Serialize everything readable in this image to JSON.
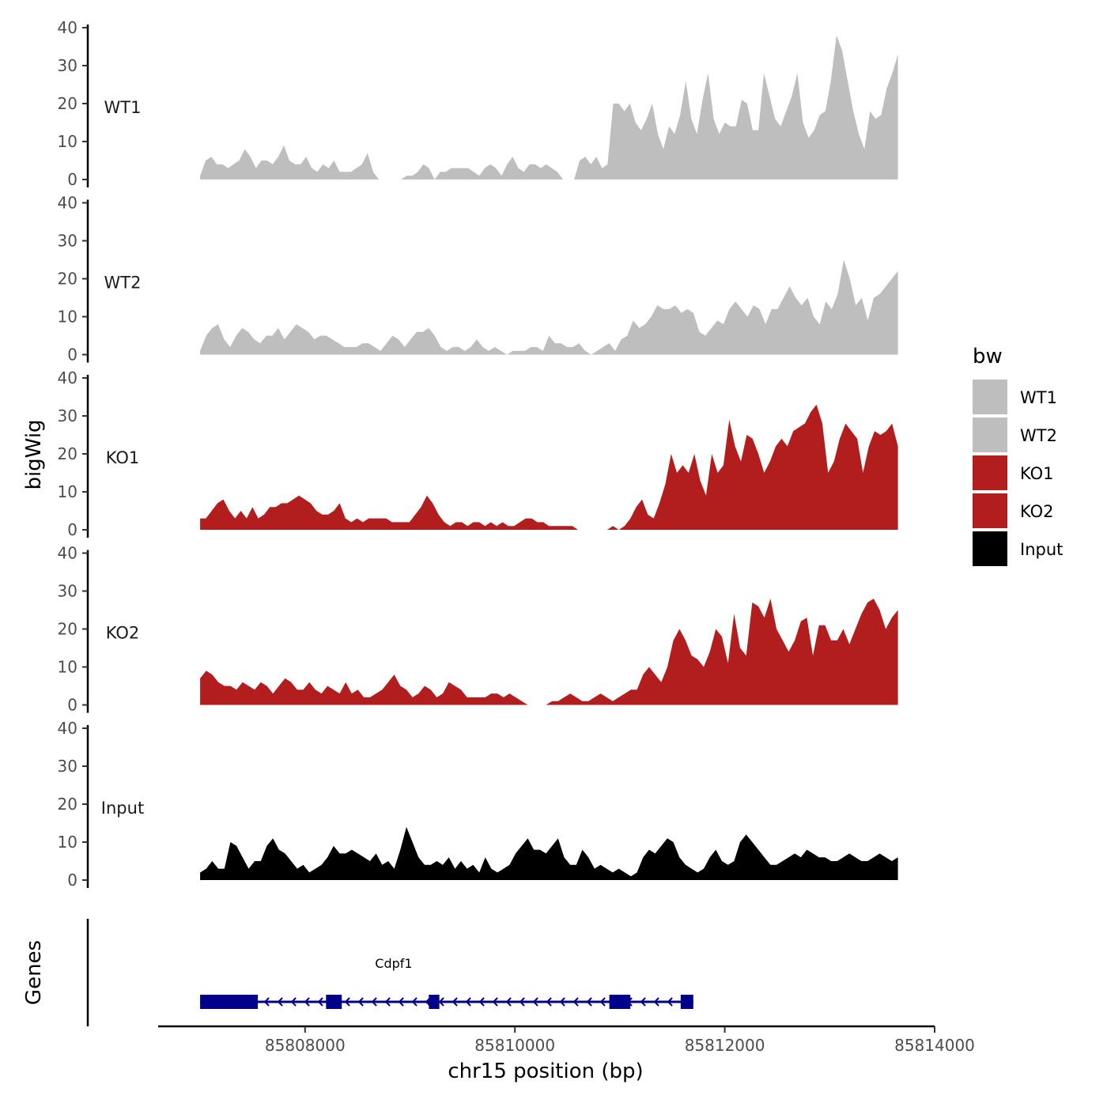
{
  "chart_data": {
    "type": "area",
    "ylabel": "bigWig",
    "xlabel": "chr15 position (bp)",
    "genes_label": "Genes",
    "ylim": [
      0,
      40
    ],
    "yticks": [
      0,
      10,
      20,
      30,
      40
    ],
    "xlim": [
      85806600,
      85814000
    ],
    "xticks": [
      85808000,
      85810000,
      85812000,
      85814000
    ],
    "x_start": 85807000,
    "x_end": 85813650,
    "legend": {
      "title": "bw",
      "position": "right",
      "entries": [
        {
          "label": "WT1",
          "color": "#bebebe"
        },
        {
          "label": "WT2",
          "color": "#bebebe"
        },
        {
          "label": "KO1",
          "color": "#b21e1e"
        },
        {
          "label": "KO2",
          "color": "#b21e1e"
        },
        {
          "label": "Input",
          "color": "#000000"
        }
      ]
    },
    "series": [
      {
        "name": "WT1",
        "color": "#bebebe",
        "values": [
          1,
          5,
          6,
          4,
          4,
          3,
          4,
          5,
          8,
          6,
          3,
          5,
          5,
          4,
          6,
          9,
          5,
          4,
          4,
          6,
          3,
          2,
          4,
          3,
          5,
          2,
          2,
          2,
          3,
          4,
          7,
          2,
          0,
          0,
          0,
          0,
          0,
          1,
          1,
          2,
          4,
          3,
          0,
          2,
          2,
          3,
          3,
          3,
          3,
          2,
          1,
          3,
          4,
          3,
          1,
          4,
          6,
          3,
          2,
          4,
          4,
          3,
          4,
          3,
          2,
          0,
          0,
          0,
          5,
          6,
          4,
          6,
          3,
          4,
          20,
          20,
          18,
          20,
          15,
          13,
          16,
          20,
          12,
          8,
          14,
          12,
          17,
          26,
          16,
          12,
          21,
          28,
          16,
          12,
          15,
          14,
          14,
          21,
          20,
          13,
          13,
          28,
          22,
          16,
          14,
          18,
          22,
          28,
          15,
          11,
          13,
          17,
          18,
          26,
          38,
          34,
          26,
          18,
          12,
          8,
          18,
          16,
          17,
          24,
          28,
          33
        ]
      },
      {
        "name": "WT2",
        "color": "#bebebe",
        "values": [
          1,
          5,
          7,
          8,
          4,
          2,
          5,
          7,
          6,
          4,
          3,
          5,
          5,
          7,
          4,
          6,
          8,
          7,
          6,
          4,
          5,
          5,
          4,
          3,
          2,
          2,
          2,
          3,
          3,
          2,
          1,
          3,
          5,
          4,
          2,
          4,
          6,
          6,
          7,
          5,
          2,
          1,
          2,
          2,
          1,
          2,
          4,
          2,
          1,
          2,
          1,
          0,
          1,
          1,
          1,
          2,
          2,
          1,
          5,
          3,
          3,
          2,
          2,
          3,
          1,
          0,
          1,
          2,
          3,
          1,
          4,
          5,
          9,
          7,
          8,
          10,
          13,
          12,
          12,
          13,
          11,
          12,
          11,
          6,
          5,
          7,
          9,
          8,
          12,
          14,
          12,
          10,
          13,
          12,
          8,
          12,
          12,
          15,
          18,
          15,
          13,
          15,
          10,
          8,
          14,
          12,
          16,
          25,
          20,
          13,
          15,
          9,
          15,
          16,
          18,
          20,
          22
        ]
      },
      {
        "name": "KO1",
        "color": "#b21e1e",
        "values": [
          3,
          3,
          5,
          7,
          8,
          5,
          3,
          5,
          3,
          6,
          3,
          4,
          6,
          6,
          7,
          7,
          8,
          9,
          8,
          7,
          5,
          4,
          4,
          5,
          7,
          3,
          2,
          3,
          2,
          3,
          3,
          3,
          3,
          2,
          2,
          2,
          2,
          4,
          6,
          9,
          7,
          4,
          2,
          1,
          2,
          2,
          1,
          2,
          2,
          1,
          2,
          1,
          2,
          1,
          1,
          2,
          3,
          3,
          2,
          2,
          1,
          1,
          1,
          1,
          1,
          0,
          0,
          0,
          0,
          0,
          0,
          1,
          0,
          1,
          3,
          6,
          8,
          4,
          3,
          7,
          12,
          20,
          15,
          17,
          15,
          20,
          13,
          9,
          20,
          15,
          17,
          29,
          22,
          18,
          25,
          24,
          20,
          15,
          18,
          22,
          24,
          22,
          26,
          27,
          28,
          31,
          33,
          28,
          15,
          18,
          24,
          28,
          26,
          24,
          15,
          22,
          26,
          25,
          26,
          28,
          22
        ]
      },
      {
        "name": "KO2",
        "color": "#b21e1e",
        "values": [
          7,
          9,
          8,
          6,
          5,
          5,
          4,
          6,
          5,
          4,
          6,
          5,
          3,
          5,
          7,
          6,
          4,
          4,
          6,
          4,
          3,
          5,
          4,
          3,
          6,
          3,
          4,
          2,
          2,
          3,
          4,
          6,
          8,
          5,
          4,
          2,
          3,
          5,
          4,
          2,
          3,
          6,
          5,
          4,
          2,
          2,
          2,
          2,
          3,
          3,
          2,
          3,
          2,
          1,
          0,
          0,
          0,
          0,
          1,
          1,
          2,
          3,
          2,
          1,
          1,
          2,
          3,
          2,
          1,
          2,
          3,
          4,
          4,
          8,
          10,
          8,
          6,
          10,
          17,
          20,
          17,
          13,
          12,
          10,
          14,
          20,
          18,
          11,
          24,
          15,
          13,
          27,
          26,
          23,
          28,
          20,
          17,
          14,
          17,
          22,
          23,
          13,
          21,
          21,
          17,
          17,
          20,
          16,
          20,
          24,
          27,
          28,
          25,
          20,
          23,
          25
        ]
      },
      {
        "name": "Input",
        "color": "#000000",
        "values": [
          2,
          3,
          5,
          3,
          3,
          10,
          9,
          6,
          3,
          5,
          5,
          9,
          11,
          8,
          7,
          5,
          3,
          4,
          2,
          3,
          4,
          6,
          9,
          7,
          7,
          8,
          7,
          6,
          5,
          7,
          4,
          5,
          3,
          8,
          14,
          10,
          6,
          4,
          4,
          5,
          4,
          6,
          3,
          5,
          3,
          4,
          2,
          6,
          3,
          2,
          3,
          4,
          7,
          9,
          11,
          8,
          8,
          7,
          9,
          11,
          6,
          4,
          4,
          8,
          6,
          3,
          4,
          3,
          2,
          3,
          2,
          1,
          2,
          6,
          8,
          7,
          9,
          11,
          10,
          6,
          4,
          3,
          2,
          3,
          6,
          8,
          5,
          4,
          5,
          10,
          12,
          10,
          8,
          6,
          4,
          4,
          5,
          6,
          7,
          6,
          8,
          7,
          6,
          6,
          5,
          5,
          6,
          7,
          6,
          5,
          5,
          6,
          7,
          6,
          5,
          6
        ]
      }
    ],
    "genes": [
      {
        "name": "Cdpf1",
        "strand": "-",
        "start": 85807000,
        "end": 85811700,
        "exons": [
          [
            85807000,
            85807550
          ],
          [
            85808200,
            85808350
          ],
          [
            85809180,
            85809280
          ],
          [
            85810900,
            85811100
          ],
          [
            85811580,
            85811700
          ]
        ]
      }
    ]
  }
}
